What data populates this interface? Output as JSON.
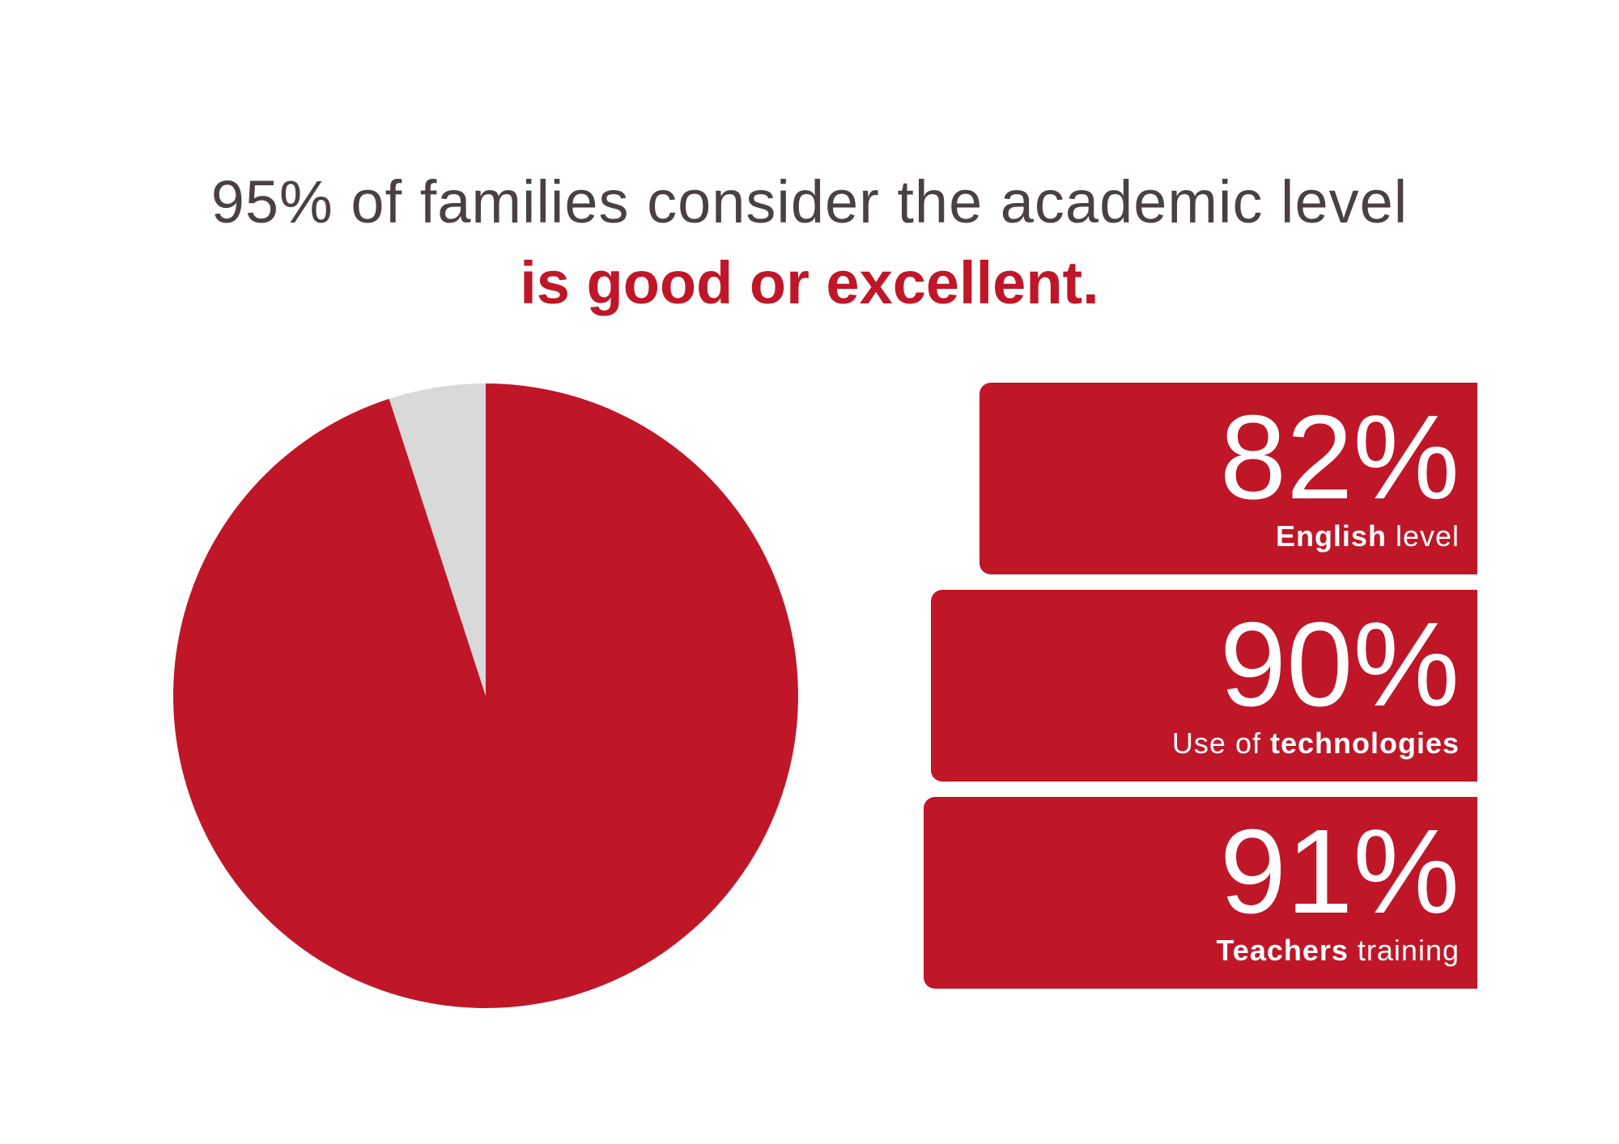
{
  "headline": {
    "line1": "95% of families consider the academic level",
    "line2": "is good or excellent."
  },
  "colors": {
    "primary": "#bf1728",
    "secondary": "#d9d9d9",
    "text": "#4a4042"
  },
  "chart_data": [
    {
      "type": "pie",
      "title": "",
      "slices": [
        {
          "value": 95,
          "color": "#bf1728"
        },
        {
          "value": 5,
          "color": "#d9d9d9"
        }
      ]
    },
    {
      "type": "table",
      "rows": [
        {
          "value": "82%",
          "label_bold": "English",
          "label_light": " level",
          "bold_first": true
        },
        {
          "value": "90%",
          "label_light": "Use of ",
          "label_bold": "technologies",
          "bold_first": false
        },
        {
          "value": "91%",
          "label_bold": "Teachers",
          "label_light": " training",
          "bold_first": true
        }
      ]
    }
  ]
}
